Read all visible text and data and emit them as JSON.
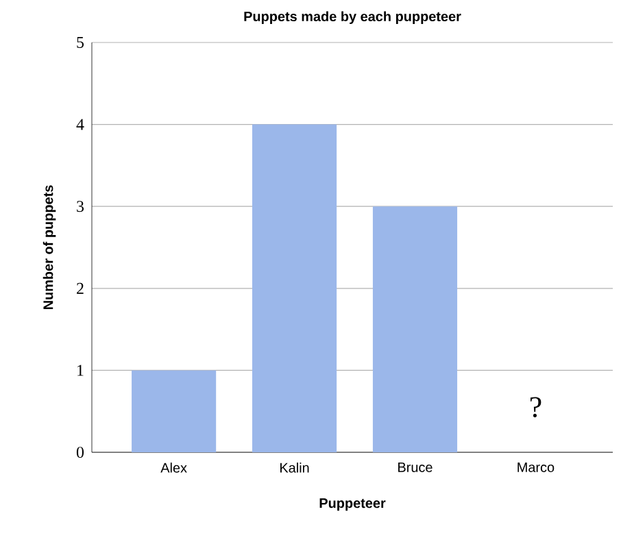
{
  "chart_data": {
    "type": "bar",
    "title": "Puppets made by each puppeteer",
    "xlabel": "Puppeteer",
    "ylabel": "Number of puppets",
    "categories": [
      "Alex",
      "Kalin",
      "Bruce",
      "Marco"
    ],
    "values": [
      1,
      4,
      3,
      null
    ],
    "color": "#9bb7ea",
    "ylim": [
      0,
      5
    ],
    "yticks": [
      0,
      1,
      2,
      3,
      4,
      5
    ],
    "grid": "y",
    "annotations": [
      "?"
    ]
  }
}
